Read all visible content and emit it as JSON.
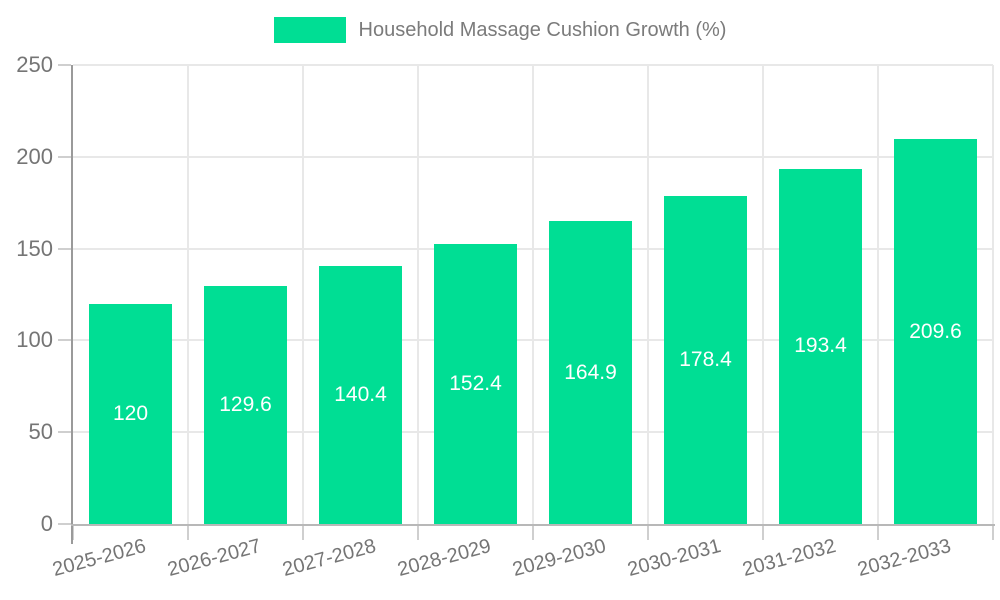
{
  "chart_data": {
    "type": "bar",
    "title": "Household Massage Cushion Growth (%)",
    "categories": [
      "2025-2026",
      "2026-2027",
      "2027-2028",
      "2028-2029",
      "2029-2030",
      "2030-2031",
      "2031-2032",
      "2032-2033"
    ],
    "values": [
      120,
      129.6,
      140.4,
      152.4,
      164.9,
      178.4,
      193.4,
      209.6
    ],
    "value_labels": [
      "120",
      "129.6",
      "140.4",
      "152.4",
      "164.9",
      "178.4",
      "193.4",
      "209.6"
    ],
    "xlabel": "",
    "ylabel": "",
    "ylim": [
      0,
      250
    ],
    "yticks": [
      0,
      50,
      100,
      150,
      200,
      250
    ],
    "ytick_labels": [
      "0",
      "50",
      "100",
      "150",
      "200",
      "250"
    ],
    "grid": true,
    "legend_position": "top",
    "value_label_position": "inside-center",
    "xlabel_rotation_deg": -15,
    "colors": {
      "bar": "#00DE94",
      "value_label": "#ffffff",
      "axis_text": "#757575",
      "legend_text": "#7b7b7b",
      "gridline": "#e8e8e8",
      "tick": "#cfcfcf",
      "y_axis_line": "#9a9a9a",
      "x_axis_line": "#b8b8b8",
      "background": "#ffffff"
    }
  }
}
